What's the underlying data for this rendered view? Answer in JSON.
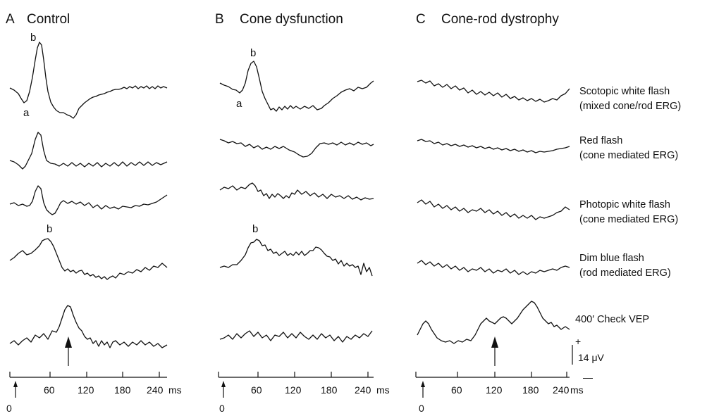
{
  "panels": [
    {
      "letter": "A",
      "title": "Control"
    },
    {
      "letter": "B",
      "title": "Cone dysfunction"
    },
    {
      "letter": "C",
      "title": "Cone-rod dystrophy"
    }
  ],
  "row_labels": [
    {
      "line1": "Scotopic white flash",
      "line2": "(mixed cone/rod ERG)"
    },
    {
      "line1": "Red flash",
      "line2": "(cone mediated ERG)"
    },
    {
      "line1": "Photopic white flash",
      "line2": "(cone mediated ERG)"
    },
    {
      "line1": "Dim blue flash",
      "line2": "(rod mediated ERG)"
    },
    {
      "line1": "400′ Check VEP",
      "line2": ""
    }
  ],
  "peak_labels": {
    "a": "a",
    "b": "b"
  },
  "time_axis": {
    "ticks": [
      "60",
      "120",
      "180",
      "240"
    ],
    "unit": "ms",
    "origin": "0"
  },
  "scale_bar": {
    "plus": "+",
    "minus": "—",
    "label": "14 μV"
  }
}
